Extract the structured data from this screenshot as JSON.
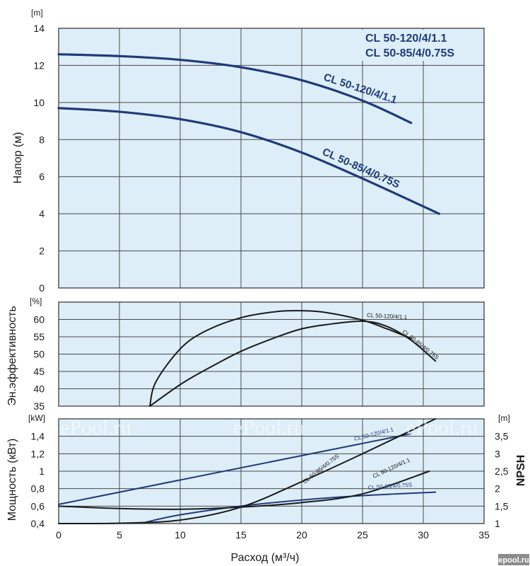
{
  "legend": {
    "lines": [
      "CL 50-120/4/1.1",
      "CL 50-85/4/0.75S"
    ]
  },
  "watermark": "ePool.ru",
  "brand_badge": "epool.ru",
  "xlabel": "Расход (м³/ч)",
  "colors": {
    "panel_bg": "#ddeef8",
    "grid": "#4a4a4a",
    "blue_curve": "#1f3a7a",
    "black_curve": "#1a1a1a",
    "brand_bg": "#8c8c8c"
  },
  "chart_data": [
    {
      "type": "line",
      "id": "head",
      "ylabel": "Напор (м)",
      "yunit": "[m]",
      "xlim": [
        0,
        35
      ],
      "ylim": [
        0,
        14
      ],
      "xticks": [
        0,
        5,
        10,
        15,
        20,
        25,
        30,
        35
      ],
      "yticks": [
        0,
        2,
        4,
        6,
        8,
        10,
        12,
        14
      ],
      "grid": true,
      "legend_position": "top-right",
      "series": [
        {
          "name": "CL 50-120/4/1.1",
          "color": "#1f3a7a",
          "x": [
            0,
            5,
            10,
            15,
            20,
            25,
            29
          ],
          "y": [
            12.6,
            12.5,
            12.3,
            11.9,
            11.2,
            10.1,
            8.9
          ]
        },
        {
          "name": "CL 50-85/4/0.75S",
          "color": "#1f3a7a",
          "x": [
            0,
            5,
            10,
            15,
            20,
            25,
            31.3
          ],
          "y": [
            9.7,
            9.5,
            9.1,
            8.4,
            7.3,
            5.9,
            4.0
          ]
        }
      ]
    },
    {
      "type": "line",
      "id": "efficiency",
      "ylabel": "Эн.эффективность",
      "yunit": "[%]",
      "xlim": [
        0,
        35
      ],
      "ylim": [
        35,
        65
      ],
      "yticks": [
        35,
        40,
        45,
        50,
        55,
        60
      ],
      "grid": true,
      "series": [
        {
          "name": "CL 50-120/4/1.1",
          "color": "#1a1a1a",
          "x": [
            7.5,
            8,
            10,
            12,
            15,
            18,
            20,
            22,
            25,
            27,
            29
          ],
          "y": [
            35,
            42,
            51.5,
            56.5,
            60.5,
            62.3,
            62.5,
            62,
            59.8,
            57.3,
            54.5
          ]
        },
        {
          "name": "CL 50-85/4/0.75S",
          "color": "#1a1a1a",
          "x": [
            7.5,
            10,
            12,
            15,
            18,
            20,
            22,
            25,
            27,
            29,
            31
          ],
          "y": [
            35,
            41.2,
            45.3,
            50.8,
            55,
            57.3,
            58.5,
            59.5,
            58,
            54,
            48
          ]
        }
      ]
    },
    {
      "type": "line",
      "id": "power_npsh",
      "ylabel": "Мощность (кВт)",
      "yunit": "[kW]",
      "y2label": "NPSH",
      "y2unit": "[m]",
      "xlim": [
        0,
        35
      ],
      "ylim": [
        0.4,
        1.6
      ],
      "yticks": [
        0.4,
        0.6,
        0.8,
        1,
        1.2,
        1.4
      ],
      "ytick_labels": [
        "0,4",
        "0,6",
        "0,8",
        "1",
        "1,2",
        "1,4"
      ],
      "y2lim": [
        1,
        4
      ],
      "y2ticks": [
        1,
        1.5,
        2,
        2.5,
        3,
        3.5
      ],
      "y2tick_labels": [
        "1",
        "1,5",
        "2",
        "2,5",
        "3",
        "3,5"
      ],
      "grid": true,
      "series": [
        {
          "name": "CL 50-120/4/1.1",
          "kind": "power",
          "axis": "left",
          "color": "#1f3a7a",
          "x": [
            0,
            29
          ],
          "y": [
            0.62,
            1.43
          ]
        },
        {
          "name": "CL 50-85/4/0.75S",
          "kind": "power",
          "axis": "left",
          "color": "#1f3a7a",
          "x": [
            7,
            10,
            15,
            20,
            25,
            31
          ],
          "y": [
            0.41,
            0.5,
            0.6,
            0.67,
            0.72,
            0.76
          ]
        },
        {
          "name": "CL 50-120/4/1.1",
          "kind": "npsh",
          "axis": "right",
          "color": "#1a1a1a",
          "x": [
            0,
            5,
            10,
            15,
            20,
            25,
            30.5
          ],
          "y": [
            1.5,
            1.43,
            1.41,
            1.47,
            1.6,
            1.85,
            2.5
          ]
        },
        {
          "name": "CL 50-85/4/0.75S",
          "kind": "npsh",
          "axis": "right",
          "color": "#1a1a1a",
          "x": [
            0,
            5,
            10,
            15,
            20,
            25,
            31
          ],
          "y": [
            1.0,
            1.01,
            1.1,
            1.47,
            2.2,
            3.0,
            4.0
          ]
        }
      ]
    }
  ]
}
